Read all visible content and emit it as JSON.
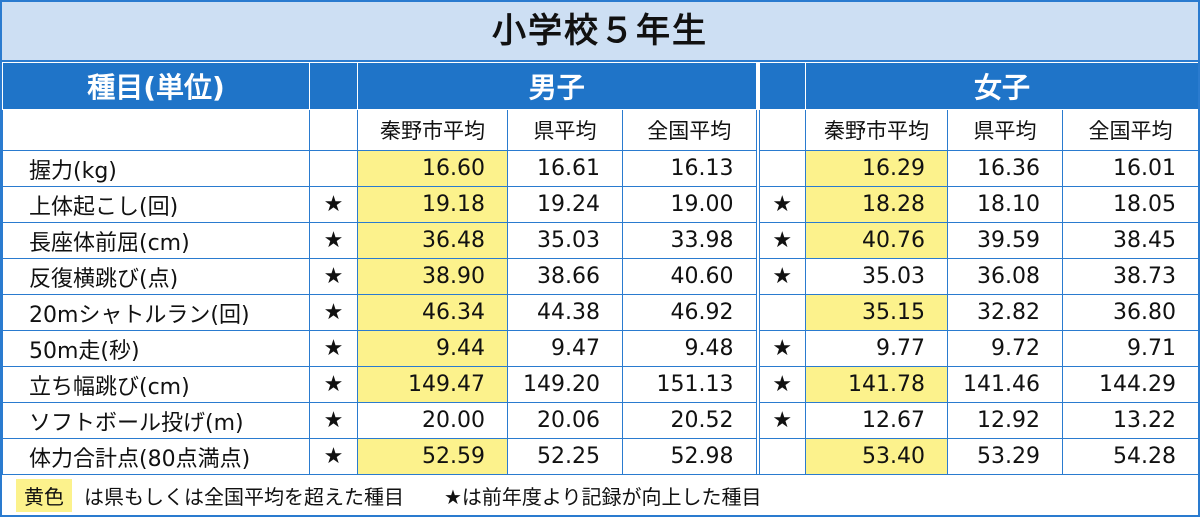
{
  "title": "小学校５年生",
  "header": {
    "item": "種目(単位)",
    "groups": [
      {
        "name": "男子",
        "columns": [
          "秦野市平均",
          "県平均",
          "全国平均"
        ]
      },
      {
        "name": "女子",
        "columns": [
          "秦野市平均",
          "県平均",
          "全国平均"
        ]
      }
    ]
  },
  "highlight_color": "#fcf28c",
  "rows": [
    {
      "label": "握力(kg)",
      "groups": [
        {
          "values": [
            "16.60",
            "16.61",
            "16.13"
          ],
          "highlight": true
        },
        {
          "values": [
            "16.29",
            "16.36",
            "16.01"
          ],
          "highlight": true
        }
      ]
    },
    {
      "label": "上体起こし(回)",
      "groups": [
        {
          "star": "★",
          "values": [
            "19.18",
            "19.24",
            "19.00"
          ],
          "highlight": true
        },
        {
          "star": "★",
          "values": [
            "18.28",
            "18.10",
            "18.05"
          ],
          "highlight": true
        }
      ]
    },
    {
      "label": "長座体前屈(cm)",
      "groups": [
        {
          "star": "★",
          "values": [
            "36.48",
            "35.03",
            "33.98"
          ],
          "highlight": true
        },
        {
          "star": "★",
          "values": [
            "40.76",
            "39.59",
            "38.45"
          ],
          "highlight": true
        }
      ]
    },
    {
      "label": "反復横跳び(点)",
      "groups": [
        {
          "star": "★",
          "values": [
            "38.90",
            "38.66",
            "40.60"
          ],
          "highlight": true
        },
        {
          "star": "★",
          "values": [
            "35.03",
            "36.08",
            "38.73"
          ],
          "highlight": false
        }
      ]
    },
    {
      "label": "20mシャトルラン(回)",
      "groups": [
        {
          "star": "★",
          "values": [
            "46.34",
            "44.38",
            "46.92"
          ],
          "highlight": true
        },
        {
          "values": [
            "35.15",
            "32.82",
            "36.80"
          ],
          "highlight": true
        }
      ]
    },
    {
      "label": "50m走(秒)",
      "groups": [
        {
          "star": "★",
          "values": [
            "9.44",
            "9.47",
            "9.48"
          ],
          "highlight": true
        },
        {
          "star": "★",
          "values": [
            "9.77",
            "9.72",
            "9.71"
          ],
          "highlight": false
        }
      ]
    },
    {
      "label": "立ち幅跳び(cm)",
      "groups": [
        {
          "star": "★",
          "values": [
            "149.47",
            "149.20",
            "151.13"
          ],
          "highlight": true
        },
        {
          "star": "★",
          "values": [
            "141.78",
            "141.46",
            "144.29"
          ],
          "highlight": true
        }
      ]
    },
    {
      "label": "ソフトボール投げ(m)",
      "groups": [
        {
          "star": "★",
          "values": [
            "20.00",
            "20.06",
            "20.52"
          ],
          "highlight": false
        },
        {
          "star": "★",
          "values": [
            "12.67",
            "12.92",
            "13.22"
          ],
          "highlight": false
        }
      ]
    },
    {
      "label": "体力合計点(80点満点)",
      "groups": [
        {
          "star": "★",
          "values": [
            "52.59",
            "52.25",
            "52.98"
          ],
          "highlight": true
        },
        {
          "values": [
            "53.40",
            "53.29",
            "54.28"
          ],
          "highlight": true
        }
      ]
    }
  ],
  "footer": {
    "legend_swatch": "黄色",
    "legend_text": "は県もしくは全国平均を超えた種目",
    "star_note": "★は前年度より記録が向上した種目"
  }
}
